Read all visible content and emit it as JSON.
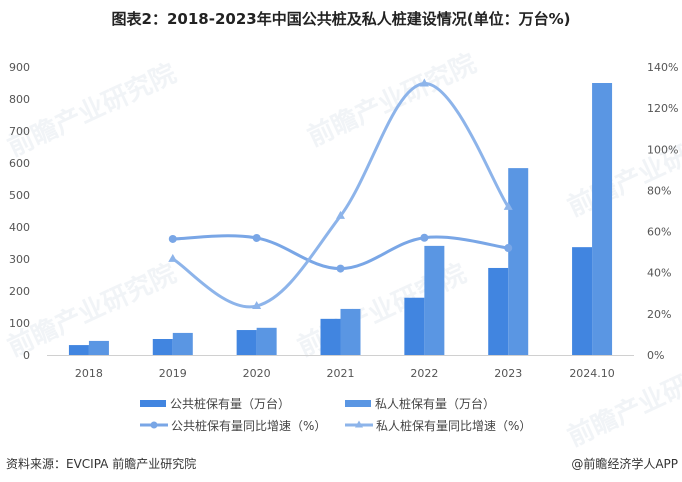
{
  "title": "图表2：2018-2023年中国公共桩及私人桩建设情况(单位：万台%)",
  "source": "资料来源：EVCIPA 前瞻产业研究院",
  "credit": "@前瞻经济学人APP",
  "watermark": "前瞻产业研究院",
  "legend": {
    "public_bar": "公共桩保有量（万台）",
    "private_bar": "私人桩保有量（万台）",
    "public_line": "公共桩保有量同比增速（%）",
    "private_line": "私人桩保有量同比增速（%）"
  },
  "colors": {
    "public_bar": "#4185E0",
    "private_bar": "#5A96E3",
    "public_line": "#79A6E6",
    "private_line": "#8DB4EA",
    "axis": "#d0d0d0"
  },
  "chart_data": {
    "type": "bar+line",
    "title": "图表2：2018-2023年中国公共桩及私人桩建设情况(单位：万台%)",
    "categories": [
      "2018",
      "2019",
      "2020",
      "2021",
      "2022",
      "2023",
      "2024.10"
    ],
    "left_axis": {
      "label": "万台",
      "ylim": [
        0,
        900
      ],
      "ticks": [
        "0",
        "100",
        "200",
        "300",
        "400",
        "500",
        "600",
        "700",
        "800",
        "900"
      ]
    },
    "right_axis": {
      "label": "%",
      "ylim": [
        0,
        140
      ],
      "ticks": [
        "0%",
        "20%",
        "40%",
        "60%",
        "80%",
        "100%",
        "120%",
        "140%"
      ]
    },
    "series": [
      {
        "name": "公共桩保有量（万台）",
        "type": "bar",
        "axis": "left",
        "values": [
          31,
          50,
          78,
          113,
          179,
          272,
          337
        ]
      },
      {
        "name": "私人桩保有量（万台）",
        "type": "bar",
        "axis": "left",
        "values": [
          44,
          69,
          85,
          144,
          341,
          584,
          850
        ]
      },
      {
        "name": "公共桩保有量同比增速（%）",
        "type": "line",
        "axis": "right",
        "marker": "circle",
        "values": [
          null,
          56.4,
          56.9,
          42,
          57,
          52,
          null
        ]
      },
      {
        "name": "私人桩保有量同比增速（%）",
        "type": "line",
        "axis": "right",
        "marker": "triangle",
        "values": [
          null,
          46.7,
          23.8,
          67.6,
          132,
          72,
          null
        ]
      }
    ],
    "grid": false,
    "legend_position": "bottom"
  }
}
